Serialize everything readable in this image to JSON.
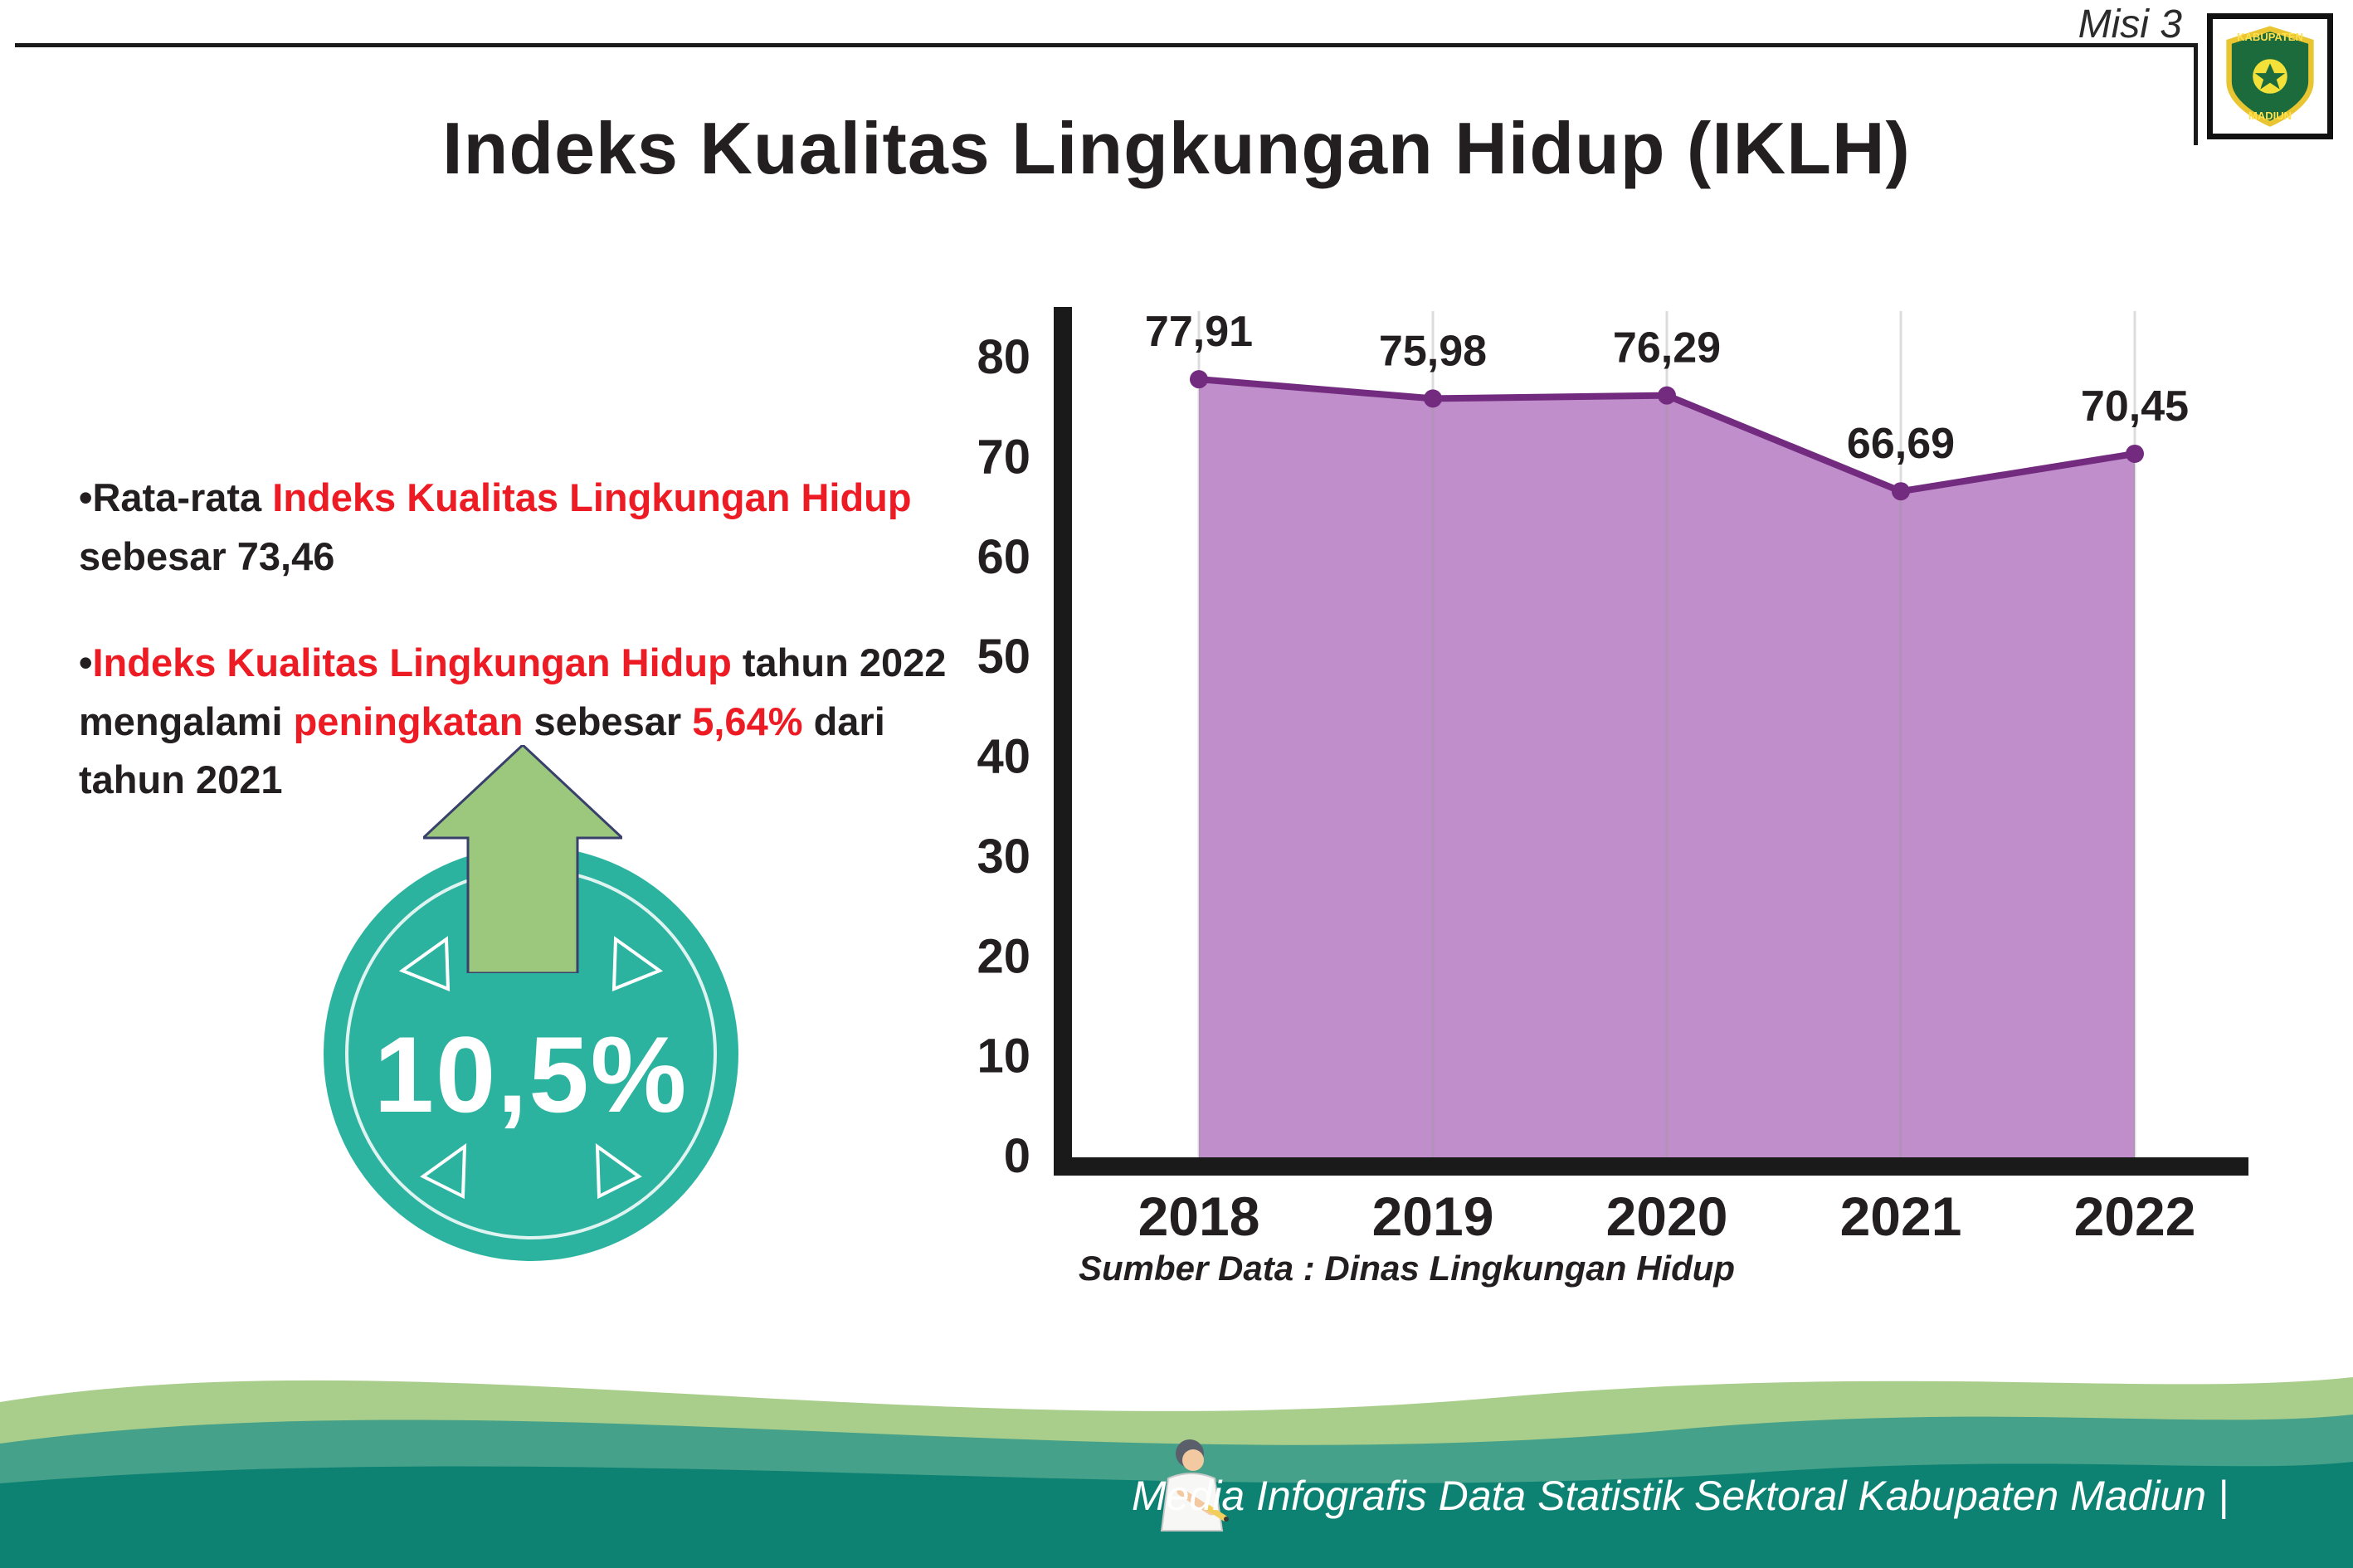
{
  "palette": {
    "title_black": "#231f20",
    "red_accent": "#ed1c24",
    "badge_teal": "#2cb3a0",
    "arrow_green": "#9cc87e",
    "area_purple": "#c08ecb",
    "line_purple": "#722b7f",
    "grid_gray": "#9b9b9b",
    "axis_black": "#1a1a1a",
    "footer_dark": "#0d8273",
    "footer_mid": "#45a189",
    "footer_light": "#a9cd8a"
  },
  "header": {
    "misi_label": "Misi 3",
    "title": "Indeks Kualitas Lingkungan Hidup (IKLH)",
    "logo_top": "KABUPATEN",
    "logo_bottom": "MADIUN"
  },
  "bullets": {
    "b1": [
      "•Rata-rata ",
      "Indeks Kualitas Lingkungan Hidup",
      " sebesar 73,46"
    ],
    "b2": [
      "•",
      "Indeks Kualitas Lingkungan Hidup",
      " tahun 2022 mengalami ",
      "peningkatan",
      " sebesar ",
      "5,64%",
      " dari tahun 2021"
    ]
  },
  "badge": {
    "value": "10,5%"
  },
  "chart_data": {
    "type": "area",
    "categories": [
      "2018",
      "2019",
      "2020",
      "2021",
      "2022"
    ],
    "values": [
      77.91,
      75.98,
      76.29,
      66.69,
      70.45
    ],
    "value_labels": [
      "77,91",
      "75,98",
      "76,29",
      "66,69",
      "70,45"
    ],
    "title": "Indeks Kualitas Lingkungan Hidup (IKLH)",
    "xlabel": "",
    "ylabel": "",
    "ylim": [
      0,
      80
    ],
    "ytick_step": 10,
    "grid": "vertical",
    "legend": "none",
    "source": "Sumber Data : Dinas Lingkungan Hidup"
  },
  "footer": {
    "credit": "Media Infografis Data Statistik Sektoral Kabupaten Madiun |"
  }
}
